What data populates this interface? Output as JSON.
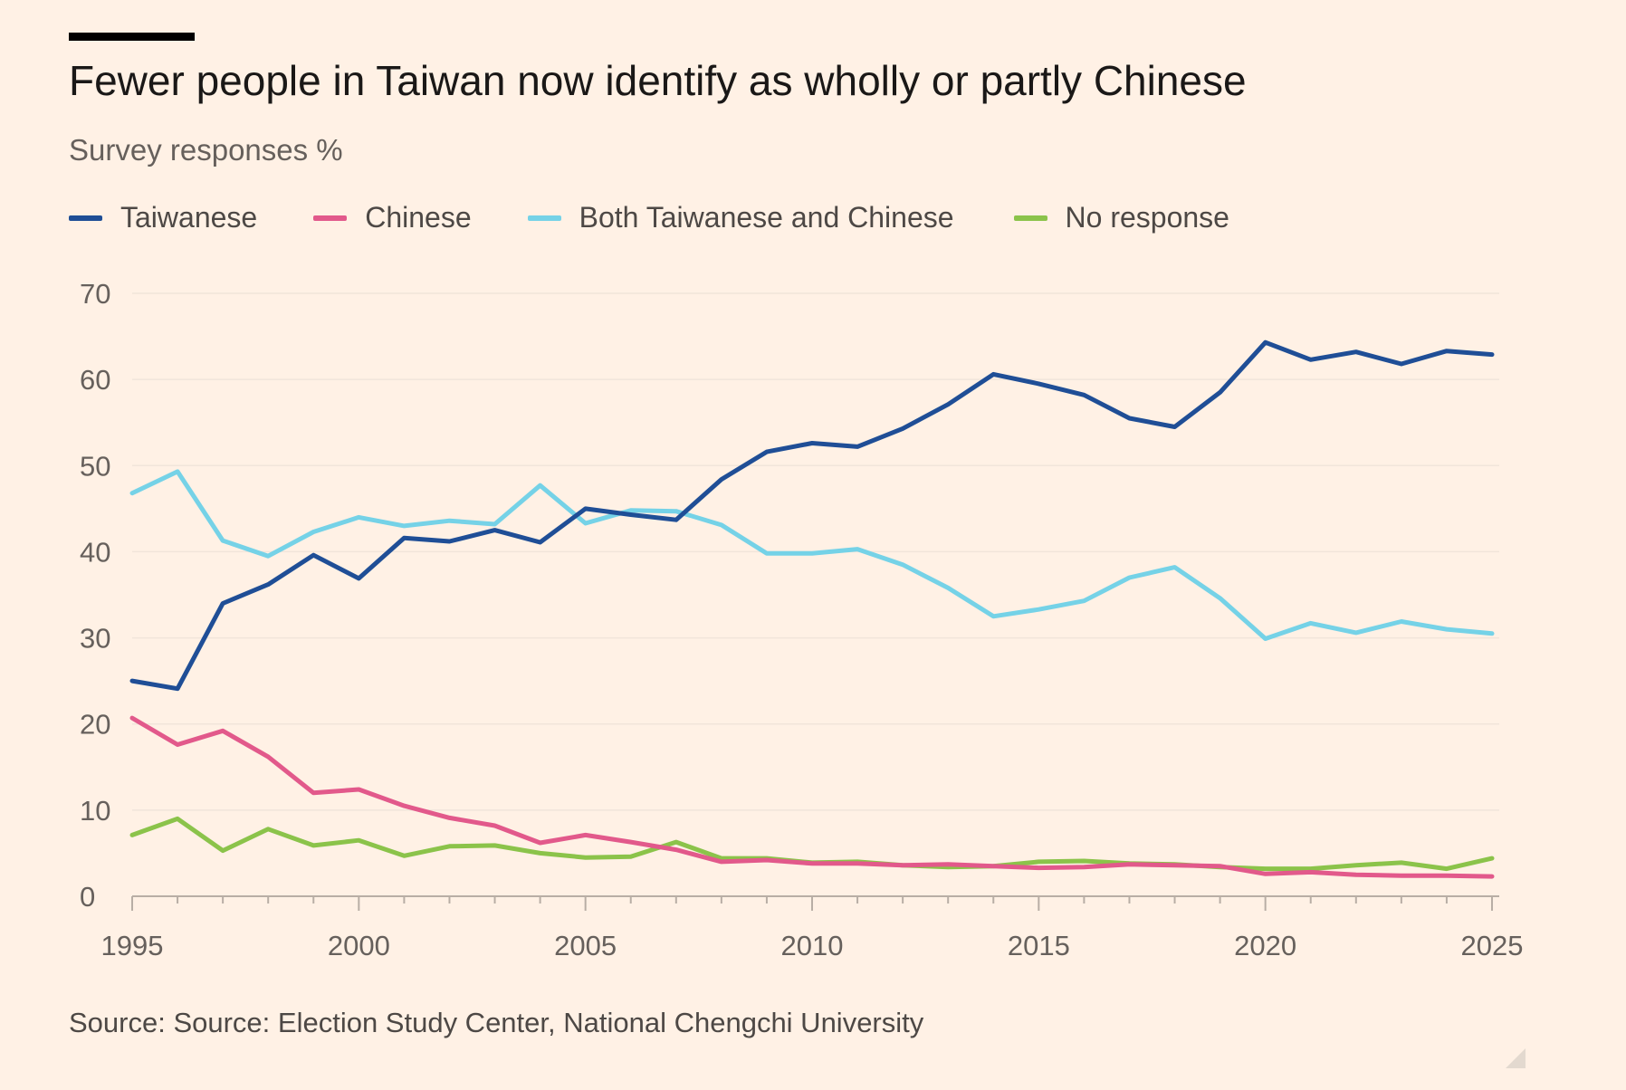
{
  "header": {
    "title": "Fewer people in Taiwan now identify as wholly or partly Chinese",
    "subtitle": "Survey responses %"
  },
  "footer": {
    "source": "Source: Source: Election Study Center, National Chengchi University"
  },
  "colors": {
    "background": "#fff1e5",
    "gridline": "#f1e5da",
    "tick_text": "#66605c",
    "axis_line": "#b8aea5"
  },
  "chart_data": {
    "type": "line",
    "title": "Fewer people in Taiwan now identify as wholly or partly Chinese",
    "subtitle": "Survey responses %",
    "xlabel": "",
    "ylabel": "",
    "x": [
      1995,
      1996,
      1997,
      1998,
      1999,
      2000,
      2001,
      2002,
      2003,
      2004,
      2005,
      2006,
      2007,
      2008,
      2009,
      2010,
      2011,
      2012,
      2013,
      2014,
      2015,
      2016,
      2017,
      2018,
      2019,
      2020,
      2021,
      2022,
      2023,
      2024,
      2025
    ],
    "xlim": [
      1995,
      2025
    ],
    "ylim": [
      0,
      70
    ],
    "x_ticks": [
      1995,
      2000,
      2005,
      2010,
      2015,
      2020,
      2025
    ],
    "y_ticks": [
      0,
      10,
      20,
      30,
      40,
      50,
      60,
      70
    ],
    "grid": true,
    "legend_position": "top-left",
    "series": [
      {
        "name": "Taiwanese",
        "color": "#1f4e96",
        "values": [
          25.0,
          24.1,
          34.0,
          36.2,
          39.6,
          36.9,
          41.6,
          41.2,
          42.5,
          41.1,
          45.0,
          44.3,
          43.7,
          48.4,
          51.6,
          52.6,
          52.2,
          54.3,
          57.1,
          60.6,
          59.5,
          58.2,
          55.5,
          54.5,
          58.5,
          64.3,
          62.3,
          63.2,
          61.8,
          63.3,
          62.9
        ]
      },
      {
        "name": "Chinese",
        "color": "#e2598b",
        "values": [
          20.7,
          17.6,
          19.2,
          16.2,
          12.0,
          12.4,
          10.5,
          9.1,
          8.2,
          6.2,
          7.1,
          6.3,
          5.4,
          4.0,
          4.2,
          3.8,
          3.8,
          3.6,
          3.7,
          3.5,
          3.3,
          3.4,
          3.7,
          3.6,
          3.5,
          2.6,
          2.8,
          2.5,
          2.4,
          2.4,
          2.3
        ]
      },
      {
        "name": "Both Taiwanese and Chinese",
        "color": "#75d2e7",
        "values": [
          46.8,
          49.3,
          41.3,
          39.5,
          42.3,
          44.0,
          43.0,
          43.6,
          43.2,
          47.7,
          43.3,
          44.8,
          44.7,
          43.1,
          39.8,
          39.8,
          40.3,
          38.5,
          35.8,
          32.5,
          33.3,
          34.3,
          37.0,
          38.2,
          34.6,
          29.9,
          31.7,
          30.6,
          31.9,
          31.0,
          30.5
        ]
      },
      {
        "name": "No response",
        "color": "#8bc34a",
        "values": [
          7.1,
          9.0,
          5.3,
          7.8,
          5.9,
          6.5,
          4.7,
          5.8,
          5.9,
          5.0,
          4.5,
          4.6,
          6.3,
          4.4,
          4.4,
          3.9,
          4.0,
          3.6,
          3.4,
          3.5,
          4.0,
          4.1,
          3.8,
          3.7,
          3.4,
          3.2,
          3.2,
          3.6,
          3.9,
          3.2,
          4.4
        ]
      }
    ]
  }
}
